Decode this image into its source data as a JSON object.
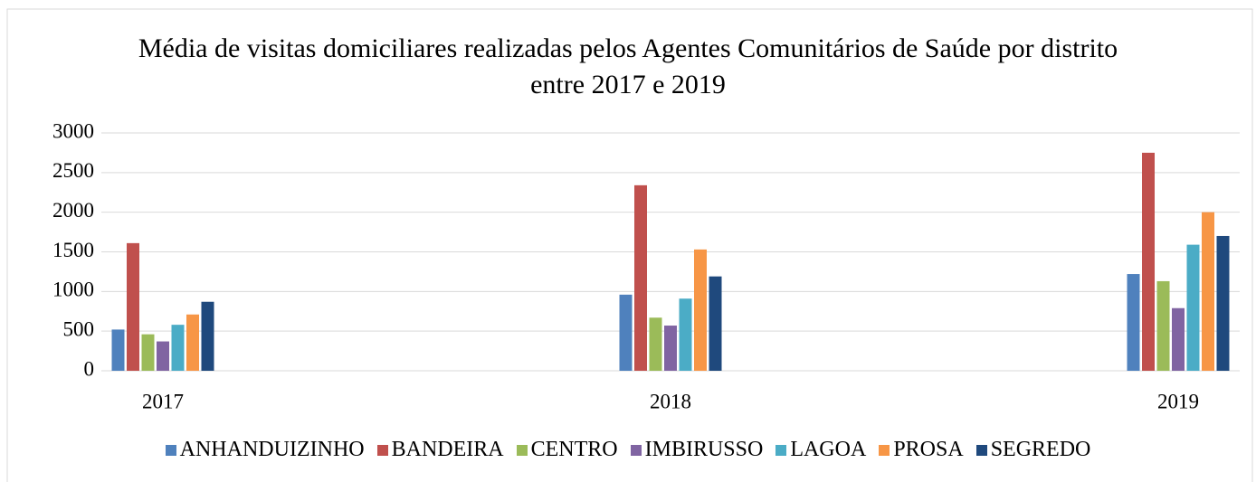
{
  "chart_data": {
    "type": "bar",
    "title": "Média de visitas domiciliares realizadas pelos Agentes Comunitários de Saúde por distrito entre 2017 e 2019",
    "categories": [
      "2017",
      "2018",
      "2019"
    ],
    "series": [
      {
        "name": "ANHANDUIZINHO",
        "color": "#4f81bd",
        "values": [
          520,
          960,
          1220
        ]
      },
      {
        "name": "BANDEIRA",
        "color": "#c0504d",
        "values": [
          1610,
          2340,
          2750
        ]
      },
      {
        "name": "CENTRO",
        "color": "#9bbb59",
        "values": [
          460,
          670,
          1130
        ]
      },
      {
        "name": "IMBIRUSSO",
        "color": "#8064a2",
        "values": [
          370,
          570,
          790
        ]
      },
      {
        "name": "LAGOA",
        "color": "#4bacc6",
        "values": [
          580,
          910,
          1590
        ]
      },
      {
        "name": "PROSA",
        "color": "#f79646",
        "values": [
          710,
          1530,
          2000
        ]
      },
      {
        "name": "SEGREDO",
        "color": "#1f497d",
        "values": [
          870,
          1190,
          1700
        ]
      }
    ],
    "ylim": [
      0,
      3000
    ],
    "yticks": [
      0,
      500,
      1000,
      1500,
      2000,
      2500,
      3000
    ],
    "grid": true,
    "legend": "bottom"
  }
}
